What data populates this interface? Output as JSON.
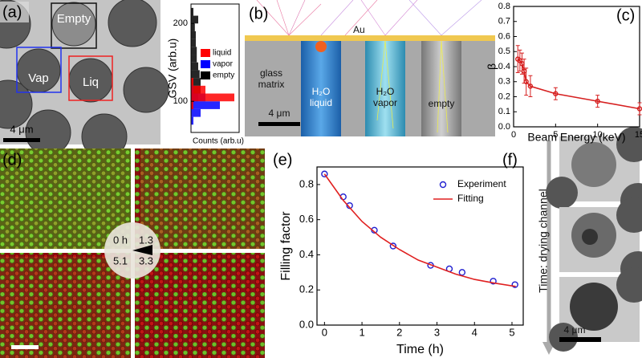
{
  "chart_data": [
    {
      "type": "line",
      "xlabel": "Beam Energy (keV)",
      "ylabel": "β",
      "xlim": [
        0,
        15
      ],
      "xticks": [
        0,
        5,
        10,
        15
      ],
      "ylim": [
        0,
        0.8
      ],
      "yticks": [
        {
          "value": 0,
          "label": "0.0"
        },
        0.1,
        0.2,
        0.3,
        0.4,
        0.5,
        0.6,
        0.7,
        0.8
      ],
      "series": [
        {
          "color": "#d62020",
          "mode": "lines+markers",
          "x": [
            0.5,
            0.75,
            1,
            1.25,
            1.5,
            2,
            5,
            10,
            15
          ],
          "values": [
            0.45,
            0.44,
            0.42,
            0.37,
            0.3,
            0.27,
            0.22,
            0.17,
            0.12
          ],
          "errors": [
            0.09,
            0.07,
            0.07,
            0.08,
            0.09,
            0.07,
            0.04,
            0.04,
            0.04
          ]
        }
      ]
    },
    {
      "type": "scatter",
      "xlabel": "Time (h)",
      "ylabel": "Filling factor",
      "xlim": [
        -0.2,
        5.3
      ],
      "xticks": [
        0,
        1,
        2,
        3,
        4,
        5
      ],
      "ylim": [
        0,
        0.9
      ],
      "yticks": [
        {
          "value": 0,
          "label": "0.0"
        },
        0.2,
        0.4,
        0.6,
        0.8
      ],
      "legend": "top-right",
      "series": [
        {
          "name": "Experiment",
          "color": "#1f1fd0",
          "mode": "markers",
          "x": [
            0,
            0.5,
            0.67,
            1.33,
            1.83,
            2.83,
            3.33,
            3.67,
            4.5,
            5.08
          ],
          "values": [
            0.86,
            0.73,
            0.68,
            0.54,
            0.45,
            0.34,
            0.32,
            0.3,
            0.25,
            0.23
          ]
        },
        {
          "name": "Fitting",
          "color": "#e02020",
          "mode": "lines",
          "x": [
            0,
            0.5,
            1,
            1.5,
            2,
            2.5,
            3,
            3.5,
            4,
            4.5,
            5.1
          ],
          "values": [
            0.86,
            0.71,
            0.59,
            0.5,
            0.43,
            0.37,
            0.33,
            0.29,
            0.26,
            0.24,
            0.22
          ]
        }
      ]
    },
    {
      "type": "histogram",
      "orientation": "horizontal",
      "ylabel": "GSV (arb.u)",
      "xlabel": "Counts (arb.u)",
      "xlim": [
        0,
        100
      ],
      "ylim": [
        60,
        225
      ],
      "yticks": [
        100,
        200
      ],
      "bins": [
        60,
        70,
        80,
        90,
        100,
        110,
        120,
        130,
        140,
        150,
        160,
        170,
        180,
        190,
        200,
        210,
        220
      ],
      "series": [
        {
          "name": "liquid",
          "color": "#ff0000",
          "values": [
            0,
            0,
            0,
            5,
            90,
            30,
            5,
            0,
            0,
            0,
            0,
            0,
            0,
            0,
            0,
            0
          ]
        },
        {
          "name": "vapor",
          "color": "#0000ff",
          "values": [
            0,
            5,
            20,
            60,
            30,
            5,
            0,
            0,
            0,
            0,
            0,
            0,
            0,
            0,
            0,
            0
          ]
        },
        {
          "name": "empty",
          "color": "#000000",
          "values": [
            0,
            0,
            0,
            5,
            15,
            20,
            20,
            18,
            15,
            12,
            12,
            10,
            10,
            8,
            15,
            5
          ]
        }
      ]
    }
  ],
  "panels": {
    "a": {
      "label": "(a)",
      "empty": "Empty",
      "vap": "Vap",
      "liq": "Liq",
      "scale_bar": "4 μm"
    },
    "b": {
      "label": "(b)",
      "au": "Au",
      "glass": [
        "glass",
        "matrix"
      ],
      "liquid": [
        "H₂O",
        "liquid"
      ],
      "vapor": [
        "H₂O",
        "vapor"
      ],
      "empty": "empty",
      "scale_bar": "4 μm"
    },
    "c": {
      "label": "(c)"
    },
    "d": {
      "label": "(d)",
      "times": [
        "0 h",
        "1.3",
        "3.3",
        "5.1"
      ]
    },
    "e": {
      "label": "(e)"
    },
    "f": {
      "label": "(f)",
      "time_axis": "Time: drying channel",
      "scale_bar": "4 μm"
    }
  }
}
